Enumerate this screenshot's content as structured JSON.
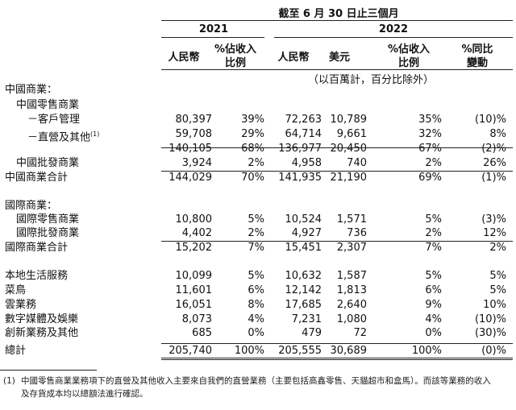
{
  "header": {
    "period": "截至 6 月 30 日止三個月",
    "year_2021": "2021",
    "year_2022": "2022",
    "units": "（以百萬計，百分比除外）",
    "columns": [
      {
        "key": "rmb21",
        "label": [
          "人民幣"
        ]
      },
      {
        "key": "pct21",
        "label": [
          "%佔收入",
          "比例"
        ]
      },
      {
        "key": "rmb22",
        "label": [
          "人民幣"
        ]
      },
      {
        "key": "usd22",
        "label": [
          "美元"
        ]
      },
      {
        "key": "pct22",
        "label": [
          "%佔收入",
          "比例"
        ]
      },
      {
        "key": "yoy",
        "label": [
          "%同比",
          "變動"
        ]
      }
    ]
  },
  "rows": [
    {
      "label": "中國商業：",
      "indent": 0,
      "values": [
        "",
        "",
        "",
        "",
        "",
        ""
      ]
    },
    {
      "label": "中國零售商業",
      "indent": 1,
      "values": [
        "",
        "",
        "",
        "",
        "",
        ""
      ]
    },
    {
      "label": "－客戶管理",
      "indent": 2,
      "values": [
        "80,397",
        "39%",
        "72,263",
        "10,789",
        "35%",
        "(10)%"
      ]
    },
    {
      "label": "－直營及其他",
      "sup": "(1)",
      "indent": 2,
      "values": [
        "59,708",
        "29%",
        "64,714",
        "9,661",
        "32%",
        "8%"
      ]
    },
    {
      "label": "",
      "indent": 0,
      "values": [
        "140,105",
        "68%",
        "136,977",
        "20,450",
        "67%",
        "(2)%"
      ]
    },
    {
      "label": "中國批發商業",
      "indent": 1,
      "values": [
        "3,924",
        "2%",
        "4,958",
        "740",
        "2%",
        "26%"
      ]
    },
    {
      "label": "中國商業合計",
      "indent": 0,
      "values": [
        "144,029",
        "70%",
        "141,935",
        "21,190",
        "69%",
        "(1)%"
      ]
    },
    {
      "label": "國際商業：",
      "indent": 0,
      "values": [
        "",
        "",
        "",
        "",
        "",
        ""
      ]
    },
    {
      "label": "國際零售商業",
      "indent": 1,
      "values": [
        "10,800",
        "5%",
        "10,524",
        "1,571",
        "5%",
        "(3)%"
      ]
    },
    {
      "label": "國際批發商業",
      "indent": 1,
      "values": [
        "4,402",
        "2%",
        "4,927",
        "736",
        "2%",
        "12%"
      ]
    },
    {
      "label": "國際商業合計",
      "indent": 0,
      "values": [
        "15,202",
        "7%",
        "15,451",
        "2,307",
        "7%",
        "2%"
      ]
    },
    {
      "label": "本地生活服務",
      "indent": 0,
      "values": [
        "10,099",
        "5%",
        "10,632",
        "1,587",
        "5%",
        "5%"
      ]
    },
    {
      "label": "菜鳥",
      "indent": 0,
      "values": [
        "11,601",
        "6%",
        "12,142",
        "1,813",
        "6%",
        "5%"
      ]
    },
    {
      "label": "雲業務",
      "indent": 0,
      "values": [
        "16,051",
        "8%",
        "17,685",
        "2,640",
        "9%",
        "10%"
      ]
    },
    {
      "label": "數字媒體及娛樂",
      "indent": 0,
      "values": [
        "8,073",
        "4%",
        "7,231",
        "1,080",
        "4%",
        "(10)%"
      ]
    },
    {
      "label": "創新業務及其他",
      "indent": 0,
      "values": [
        "685",
        "0%",
        "479",
        "72",
        "0%",
        "(30)%"
      ]
    },
    {
      "label": "總計",
      "indent": 0,
      "values": [
        "205,740",
        "100%",
        "205,555",
        "30,689",
        "100%",
        "(0)%"
      ]
    }
  ],
  "footnote": {
    "marker": "(1)",
    "line1": "中國零售商業業務項下的直營及其他收入主要來自我們的直營業務（主要包括高鑫零售、天貓超市和盒馬）。而該等業務的收入",
    "line2": "及存貨成本均以總額法進行確認。"
  }
}
